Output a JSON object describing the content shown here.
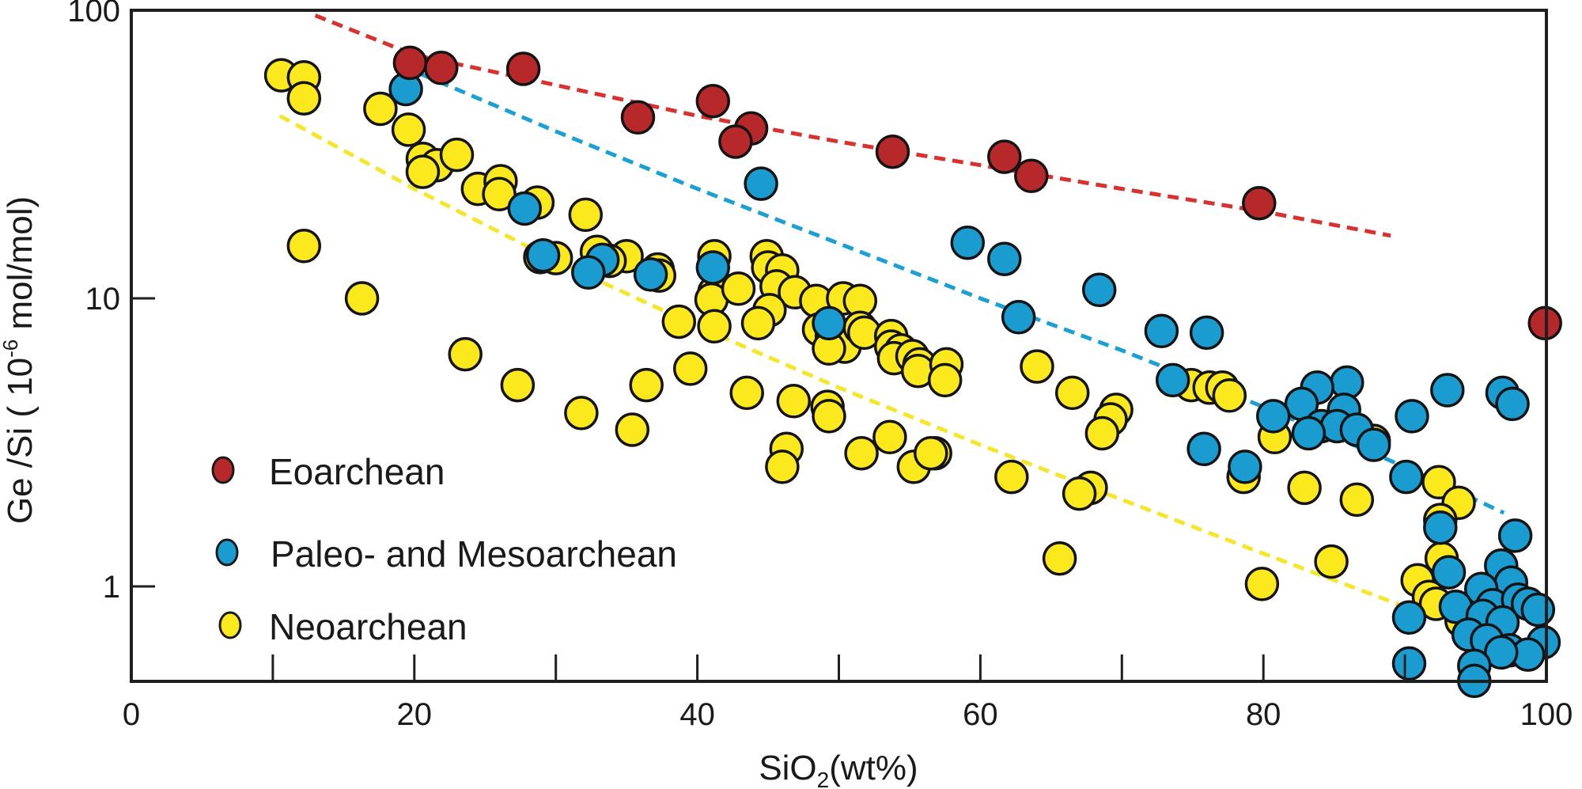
{
  "chart_data": {
    "type": "scatter",
    "title": "",
    "xlabel": "SiO2(wt%)",
    "xlabel_main": "SiO",
    "xlabel_sub": "2",
    "xlabel_tail": "(wt%)",
    "ylabel": "Ge /Si (10^-6 mol/mol)",
    "ylabel_main": "Ge /Si ( 10",
    "ylabel_sup": "-6",
    "ylabel_tail": " mol/mol)",
    "xlim": [
      0,
      100
    ],
    "ylim": [
      0.45,
      100
    ],
    "yscale": "log",
    "grid": false,
    "legend_position": "bottom-left",
    "x_ticks": [
      0,
      20,
      40,
      60,
      80,
      100
    ],
    "x_tick_labels": [
      "0",
      "20",
      "40",
      "60",
      "80",
      "100"
    ],
    "x_minor_ticks": [
      10,
      30,
      50,
      70,
      90
    ],
    "y_ticks": [
      1,
      10,
      100
    ],
    "y_tick_labels": [
      "1",
      "10",
      "100"
    ],
    "series": [
      {
        "name": "Eoarchean",
        "color": "#b7282b",
        "trend_color": "#d9312f",
        "trend": {
          "x": [
            13,
            20,
            30,
            40,
            50,
            60,
            70,
            80,
            89
          ],
          "y": [
            96,
            70,
            55,
            43,
            35,
            29,
            24,
            20,
            16.5
          ]
        },
        "points": [
          [
            19.7,
            65.7
          ],
          [
            21.9,
            63.1
          ],
          [
            27.7,
            62.6
          ],
          [
            41.1,
            48.4
          ],
          [
            35.8,
            42.5
          ],
          [
            43.8,
            38.9
          ],
          [
            42.7,
            35.0
          ],
          [
            53.8,
            32.3
          ],
          [
            61.7,
            31.0
          ],
          [
            63.6,
            26.6
          ],
          [
            79.7,
            21.4
          ],
          [
            99.9,
            8.2
          ]
        ]
      },
      {
        "name": "Paleo- and Mesoarchean",
        "color": "#1a9cd0",
        "trend_color": "#1aa0d4",
        "trend": {
          "x": [
            20.5,
            30,
            40,
            50,
            60,
            70,
            80,
            90,
            97
          ],
          "y": [
            60,
            38,
            24,
            15.5,
            10,
            6.6,
            4.2,
            2.6,
            1.8
          ]
        },
        "points": [
          [
            19.4,
            53.3
          ],
          [
            44.5,
            25.0
          ],
          [
            27.8,
            20.5
          ],
          [
            29.1,
            14.1
          ],
          [
            41.1,
            12.8
          ],
          [
            33.3,
            13.6
          ],
          [
            32.3,
            12.3
          ],
          [
            36.7,
            12.1
          ],
          [
            59.1,
            15.6
          ],
          [
            61.7,
            13.7
          ],
          [
            62.7,
            8.6
          ],
          [
            68.4,
            10.7
          ],
          [
            49.3,
            8.2
          ],
          [
            72.8,
            7.7
          ],
          [
            76.0,
            7.6
          ],
          [
            73.6,
            5.2
          ],
          [
            85.9,
            5.1
          ],
          [
            93.0,
            4.8
          ],
          [
            96.9,
            4.7
          ],
          [
            97.6,
            4.3
          ],
          [
            83.8,
            4.9
          ],
          [
            82.7,
            4.3
          ],
          [
            80.7,
            3.9
          ],
          [
            90.5,
            3.9
          ],
          [
            85.7,
            4.1
          ],
          [
            84.1,
            3.6
          ],
          [
            85.2,
            3.6
          ],
          [
            83.2,
            3.4
          ],
          [
            86.6,
            3.5
          ],
          [
            87.8,
            3.1
          ],
          [
            75.8,
            3.0
          ],
          [
            78.7,
            2.6
          ],
          [
            90.1,
            2.4
          ],
          [
            92.5,
            1.6
          ],
          [
            97.8,
            1.5
          ],
          [
            96.8,
            1.18
          ],
          [
            93.1,
            1.12
          ],
          [
            97.5,
            1.03
          ],
          [
            95.4,
            0.98
          ],
          [
            96.2,
            0.86
          ],
          [
            93.6,
            0.85
          ],
          [
            98.0,
            0.9
          ],
          [
            98.7,
            0.87
          ],
          [
            99.4,
            0.83
          ],
          [
            95.5,
            0.79
          ],
          [
            96.9,
            0.75
          ],
          [
            90.3,
            0.78
          ],
          [
            94.5,
            0.68
          ],
          [
            95.8,
            0.65
          ],
          [
            99.8,
            0.64
          ],
          [
            97.4,
            0.6
          ],
          [
            98.7,
            0.58
          ],
          [
            96.8,
            0.59
          ],
          [
            90.3,
            0.54
          ],
          [
            94.9,
            0.53
          ],
          [
            94.9,
            0.47
          ]
        ]
      },
      {
        "name": "Neoarchean",
        "color": "#fbe81d",
        "trend_color": "#f5e62a",
        "trend": {
          "x": [
            10.5,
            20,
            30,
            40,
            50,
            60,
            70,
            80,
            90,
            95.5
          ],
          "y": [
            43,
            24,
            13.5,
            8,
            4.9,
            3.1,
            2.0,
            1.3,
            0.85,
            0.68
          ]
        },
        "points": [
          [
            10.6,
            59.5
          ],
          [
            12.2,
            58.5
          ],
          [
            12.2,
            49.5
          ],
          [
            17.6,
            45.5
          ],
          [
            19.6,
            38.5
          ],
          [
            20.6,
            30.5
          ],
          [
            21.6,
            29.0
          ],
          [
            20.6,
            27.5
          ],
          [
            23.0,
            31.5
          ],
          [
            24.5,
            24.0
          ],
          [
            26.1,
            25.5
          ],
          [
            26.0,
            23.0
          ],
          [
            28.7,
            21.5
          ],
          [
            32.1,
            19.5
          ],
          [
            12.2,
            15.2
          ],
          [
            16.3,
            10.0
          ],
          [
            28.9,
            13.9
          ],
          [
            30.0,
            13.8
          ],
          [
            32.9,
            14.5
          ],
          [
            35.0,
            14.0
          ],
          [
            33.8,
            13.5
          ],
          [
            37.2,
            12.6
          ],
          [
            37.3,
            12.0
          ],
          [
            41.2,
            14.0
          ],
          [
            41.2,
            10.5
          ],
          [
            41.0,
            9.9
          ],
          [
            42.9,
            10.8
          ],
          [
            44.9,
            14.0
          ],
          [
            45.0,
            12.8
          ],
          [
            46.0,
            12.5
          ],
          [
            45.6,
            11.0
          ],
          [
            46.9,
            10.5
          ],
          [
            48.4,
            9.8
          ],
          [
            50.3,
            10.0
          ],
          [
            51.5,
            9.8
          ],
          [
            45.1,
            9.1
          ],
          [
            44.3,
            8.2
          ],
          [
            38.7,
            8.3
          ],
          [
            41.2,
            8.0
          ],
          [
            48.6,
            7.8
          ],
          [
            49.5,
            7.4
          ],
          [
            49.8,
            7.2
          ],
          [
            50.4,
            6.8
          ],
          [
            49.3,
            6.7
          ],
          [
            51.5,
            7.9
          ],
          [
            51.8,
            7.6
          ],
          [
            53.7,
            7.4
          ],
          [
            53.7,
            6.8
          ],
          [
            54.4,
            6.6
          ],
          [
            53.9,
            6.2
          ],
          [
            55.2,
            6.3
          ],
          [
            55.7,
            5.9
          ],
          [
            55.6,
            5.6
          ],
          [
            57.6,
            5.9
          ],
          [
            57.5,
            5.2
          ],
          [
            64.0,
            5.8
          ],
          [
            66.5,
            4.7
          ],
          [
            74.9,
            5.0
          ],
          [
            76.2,
            4.9
          ],
          [
            77.1,
            4.9
          ],
          [
            77.6,
            4.6
          ],
          [
            23.6,
            6.4
          ],
          [
            27.3,
            5.0
          ],
          [
            36.4,
            5.0
          ],
          [
            39.5,
            5.7
          ],
          [
            43.5,
            4.7
          ],
          [
            46.8,
            4.4
          ],
          [
            49.2,
            4.2
          ],
          [
            49.3,
            3.9
          ],
          [
            31.8,
            4.0
          ],
          [
            35.4,
            3.5
          ],
          [
            69.6,
            4.1
          ],
          [
            69.2,
            3.8
          ],
          [
            68.6,
            3.4
          ],
          [
            46.3,
            3.0
          ],
          [
            46.0,
            2.6
          ],
          [
            51.6,
            2.9
          ],
          [
            53.6,
            3.3
          ],
          [
            55.3,
            2.6
          ],
          [
            56.8,
            2.9
          ],
          [
            56.5,
            2.9
          ],
          [
            62.2,
            2.4
          ],
          [
            67.8,
            2.2
          ],
          [
            67.0,
            2.1
          ],
          [
            80.8,
            3.3
          ],
          [
            87.8,
            3.2
          ],
          [
            78.6,
            2.4
          ],
          [
            82.9,
            2.2
          ],
          [
            86.6,
            2.0
          ],
          [
            92.4,
            2.3
          ],
          [
            93.8,
            1.95
          ],
          [
            92.5,
            1.7
          ],
          [
            84.8,
            1.22
          ],
          [
            92.6,
            1.25
          ],
          [
            65.6,
            1.25
          ],
          [
            90.9,
            1.05
          ],
          [
            79.9,
            1.02
          ],
          [
            91.7,
            0.92
          ],
          [
            92.2,
            0.87
          ],
          [
            94.0,
            0.76
          ]
        ]
      }
    ]
  },
  "legend": {
    "items": [
      {
        "label": "Eoarchean",
        "color": "#b7282b"
      },
      {
        "label": "Paleo- and Mesoarchean",
        "color": "#1a9cd0"
      },
      {
        "label": "Neoarchean",
        "color": "#fbe81d"
      }
    ]
  }
}
